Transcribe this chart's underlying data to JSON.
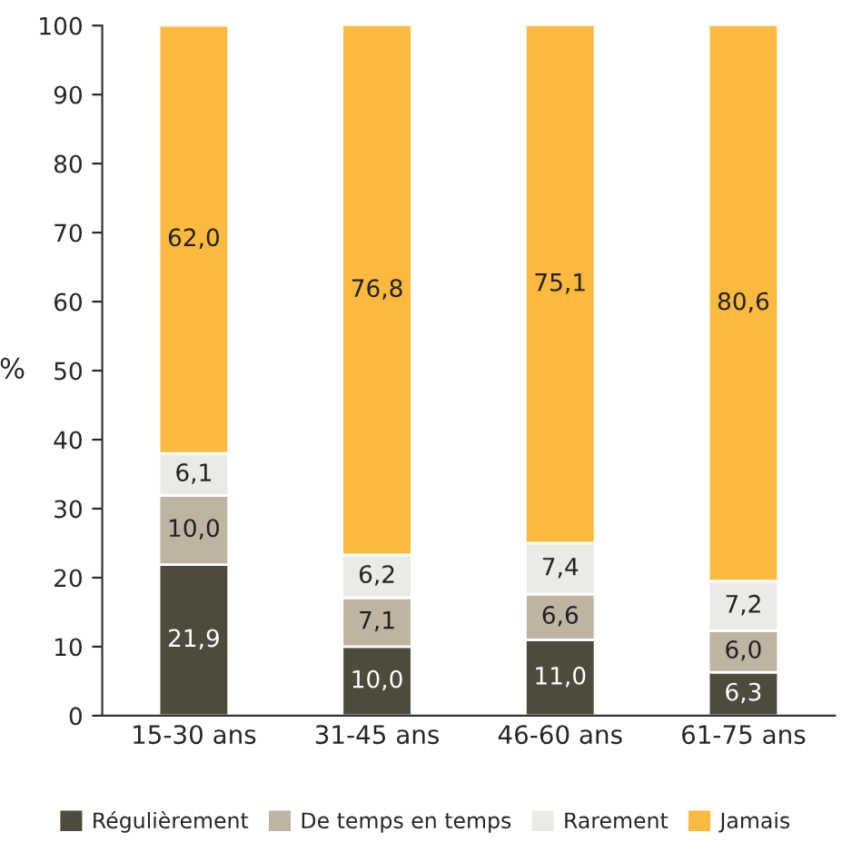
{
  "chart_data": {
    "type": "bar",
    "stacked": true,
    "ylabel": "%",
    "categories": [
      "15-30 ans",
      "31-45 ans",
      "46-60 ans",
      "61-75 ans"
    ],
    "series": [
      {
        "name": "Régulièrement",
        "color": "#4e4b3d",
        "values": [
          21.9,
          10.0,
          11.0,
          6.3
        ],
        "value_labels": [
          "21,9",
          "10,0",
          "11,0",
          "6,3"
        ]
      },
      {
        "name": "De temps en temps",
        "color": "#bdb4a2",
        "values": [
          10.0,
          7.1,
          6.6,
          6.0
        ],
        "value_labels": [
          "10,0",
          "7,1",
          "6,6",
          "6,0"
        ]
      },
      {
        "name": "Rarement",
        "color": "#eceae6",
        "values": [
          6.1,
          6.2,
          7.4,
          7.2
        ],
        "value_labels": [
          "6,1",
          "6,2",
          "7,4",
          "7,2"
        ]
      },
      {
        "name": "Jamais",
        "color": "#fbb93f",
        "values": [
          62.0,
          76.8,
          75.1,
          80.6
        ],
        "value_labels": [
          "62,0",
          "76,8",
          "75,1",
          "80,6"
        ]
      }
    ],
    "ylim": [
      0,
      100
    ],
    "yticks": [
      0,
      10,
      20,
      30,
      40,
      50,
      60,
      70,
      80,
      90,
      100
    ],
    "legend": "bottom",
    "grid": false
  }
}
